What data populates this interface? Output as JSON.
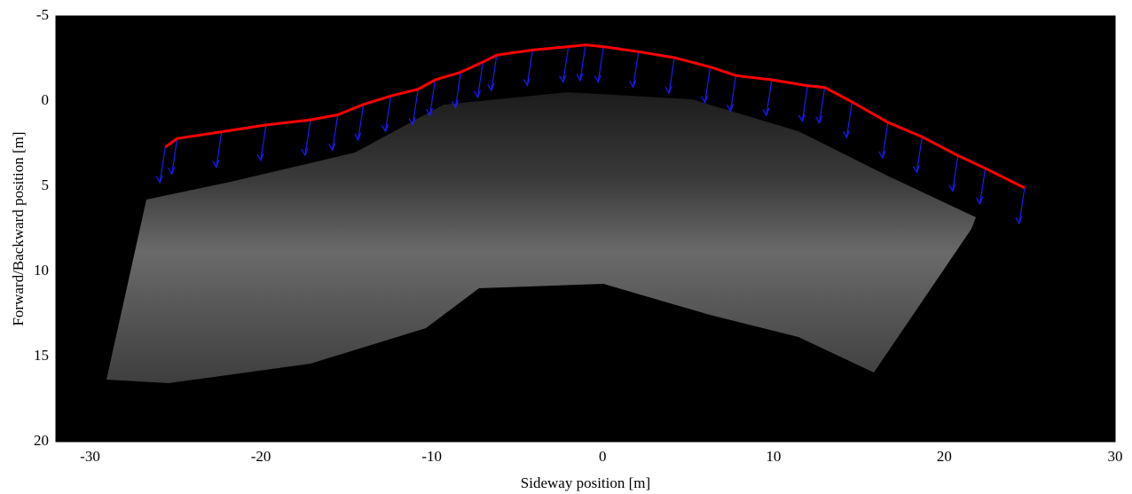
{
  "chart_data": {
    "type": "line",
    "x_label": "Sideway position [m]",
    "y_label": "Forward/Backward position [m]",
    "x": [
      -25.6,
      -24.9,
      -22.3,
      -19.7,
      -17.1,
      -15.5,
      -14.0,
      -12.4,
      -10.8,
      -9.8,
      -8.3,
      -7.0,
      -6.2,
      -4.1,
      -2.0,
      -1.0,
      0.05,
      2.1,
      4.2,
      6.3,
      7.8,
      9.9,
      12.0,
      13.0,
      14.6,
      16.7,
      18.7,
      20.8,
      22.4,
      24.7
    ],
    "values": [
      2.7,
      2.2,
      1.8,
      1.4,
      1.1,
      0.8,
      0.2,
      -0.3,
      -0.7,
      -1.25,
      -1.7,
      -2.3,
      -2.7,
      -3.0,
      -3.2,
      -3.3,
      -3.2,
      -2.9,
      -2.55,
      -2.0,
      -1.5,
      -1.25,
      -0.9,
      -0.8,
      0.05,
      1.25,
      2.1,
      3.2,
      3.95,
      5.1
    ],
    "color": "#ff0000",
    "arrow_color": "#1a1aff",
    "xlim": [
      -32,
      30
    ],
    "xticks": [
      -30,
      -20,
      -10,
      0,
      10,
      20,
      30
    ],
    "ylim": [
      -5,
      20
    ],
    "yticks": [
      -5,
      0,
      5,
      10,
      15,
      20
    ],
    "y_reversed": true
  }
}
